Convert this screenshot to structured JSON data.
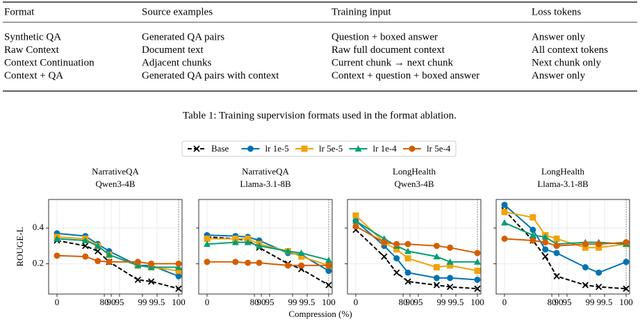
{
  "table": {
    "headers": [
      "Format",
      "Source examples",
      "Training input",
      "Loss tokens"
    ],
    "rows": [
      [
        "Synthetic QA",
        "Generated QA pairs",
        "Question + boxed answer",
        "Answer only"
      ],
      [
        "Raw Context",
        "Document text",
        "Raw full document context",
        "All context tokens"
      ],
      [
        "Context Continuation",
        "Adjacent chunks",
        "Current chunk → next chunk",
        "Next chunk only"
      ],
      [
        "Context + QA",
        "Generated QA pairs with context",
        "Context + question + boxed answer",
        "Answer only"
      ]
    ]
  },
  "caption": "Table 1: Training supervision formats used in the format ablation.",
  "figure": {
    "xlabel": "Compression (%)",
    "ylabel": "ROUGE-L",
    "legend": "top center"
  },
  "chart_data": [
    {
      "type": "line",
      "title": "NarrativeQA",
      "subtitle": "Qwen3-4B",
      "x": [
        0,
        48,
        69,
        87,
        98.2,
        99.3,
        100
      ],
      "xlim": [
        0,
        100
      ],
      "xticks": [
        0,
        80,
        90,
        95,
        99,
        99.5,
        100
      ],
      "ylim": [
        0.03,
        0.56
      ],
      "yticks": [
        0.2,
        0.4
      ],
      "grid": true,
      "vline": 100,
      "series": [
        {
          "name": "Base",
          "color": "#000000",
          "marker": "x",
          "dash": true,
          "values": [
            0.33,
            0.3,
            0.27,
            0.21,
            0.11,
            0.1,
            0.06
          ]
        },
        {
          "name": "lr 1e-5",
          "color": "#0173b2",
          "marker": "circle",
          "values": [
            0.37,
            0.355,
            0.31,
            0.27,
            0.19,
            0.19,
            0.13
          ]
        },
        {
          "name": "lr 5e-5",
          "color": "#f0a30a",
          "marker": "square",
          "values": [
            0.35,
            0.34,
            0.3,
            0.25,
            0.19,
            0.18,
            0.16
          ]
        },
        {
          "name": "lr 1e-4",
          "color": "#029e73",
          "marker": "triangle",
          "values": [
            0.34,
            0.33,
            0.3,
            0.25,
            0.19,
            0.18,
            0.18
          ]
        },
        {
          "name": "lr 5e-4",
          "color": "#d55e00",
          "marker": "circle",
          "values": [
            0.245,
            0.24,
            0.215,
            0.21,
            0.21,
            0.2,
            0.2
          ]
        }
      ]
    },
    {
      "type": "line",
      "title": "NarrativeQA",
      "subtitle": "Llama-3.1-8B",
      "x": [
        0,
        48,
        69,
        87,
        98.2,
        99.3,
        100
      ],
      "xlim": [
        0,
        100
      ],
      "xticks": [
        0,
        80,
        90,
        95,
        99,
        99.5,
        100
      ],
      "ylim": [
        0.03,
        0.56
      ],
      "yticks": [
        0.2,
        0.4
      ],
      "grid": true,
      "vline": 100,
      "series": [
        {
          "name": "Base",
          "color": "#000000",
          "marker": "x",
          "dash": true,
          "values": [
            0.35,
            0.34,
            0.33,
            0.29,
            0.2,
            0.17,
            0.08
          ]
        },
        {
          "name": "lr 1e-5",
          "color": "#0173b2",
          "marker": "circle",
          "values": [
            0.36,
            0.355,
            0.35,
            0.33,
            0.26,
            0.25,
            0.16
          ]
        },
        {
          "name": "lr 5e-5",
          "color": "#f0a30a",
          "marker": "square",
          "values": [
            0.34,
            0.34,
            0.34,
            0.31,
            0.27,
            0.24,
            0.19
          ]
        },
        {
          "name": "lr 1e-4",
          "color": "#029e73",
          "marker": "triangle",
          "values": [
            0.31,
            0.32,
            0.32,
            0.3,
            0.27,
            0.26,
            0.22
          ]
        },
        {
          "name": "lr 5e-4",
          "color": "#d55e00",
          "marker": "circle",
          "values": [
            0.21,
            0.21,
            0.205,
            0.205,
            0.19,
            0.19,
            0.19
          ]
        }
      ]
    },
    {
      "type": "line",
      "title": "LongHealth",
      "subtitle": "Qwen3-4B",
      "x": [
        0,
        48,
        69,
        87,
        98.2,
        99.3,
        100
      ],
      "xlim": [
        0,
        100
      ],
      "xticks": [
        0,
        80,
        90,
        95,
        99,
        99.5,
        100
      ],
      "ylim": [
        0.03,
        0.56
      ],
      "yticks": [
        0.2,
        0.4
      ],
      "grid": true,
      "vline": 100,
      "series": [
        {
          "name": "Base",
          "color": "#000000",
          "marker": "x",
          "dash": true,
          "values": [
            0.39,
            0.24,
            0.15,
            0.1,
            0.08,
            0.07,
            0.06
          ]
        },
        {
          "name": "lr 1e-5",
          "color": "#0173b2",
          "marker": "circle",
          "values": [
            0.44,
            0.3,
            0.23,
            0.15,
            0.12,
            0.12,
            0.11
          ]
        },
        {
          "name": "lr 5e-5",
          "color": "#f0a30a",
          "marker": "square",
          "values": [
            0.47,
            0.32,
            0.28,
            0.23,
            0.18,
            0.19,
            0.16
          ]
        },
        {
          "name": "lr 1e-4",
          "color": "#029e73",
          "marker": "triangle",
          "values": [
            0.44,
            0.34,
            0.3,
            0.27,
            0.24,
            0.21,
            0.21
          ]
        },
        {
          "name": "lr 5e-4",
          "color": "#d55e00",
          "marker": "circle",
          "values": [
            0.41,
            0.32,
            0.31,
            0.31,
            0.3,
            0.29,
            0.26
          ]
        }
      ]
    },
    {
      "type": "line",
      "title": "LongHealth",
      "subtitle": "Llama-3.1-8B",
      "x": [
        0,
        48,
        69,
        87,
        98.2,
        99.3,
        100
      ],
      "xlim": [
        0,
        100
      ],
      "xticks": [
        0,
        80,
        90,
        95,
        99,
        99.5,
        100
      ],
      "ylim": [
        0.03,
        0.56
      ],
      "yticks": [
        0.2,
        0.4
      ],
      "grid": true,
      "vline": 100,
      "series": [
        {
          "name": "Base",
          "color": "#000000",
          "marker": "x",
          "dash": true,
          "values": [
            0.5,
            0.33,
            0.24,
            0.13,
            0.08,
            0.07,
            0.06
          ]
        },
        {
          "name": "lr 1e-5",
          "color": "#0173b2",
          "marker": "circle",
          "values": [
            0.53,
            0.39,
            0.28,
            0.26,
            0.18,
            0.15,
            0.21
          ]
        },
        {
          "name": "lr 5e-5",
          "color": "#f0a30a",
          "marker": "square",
          "values": [
            0.49,
            0.46,
            0.36,
            0.34,
            0.29,
            0.29,
            0.31
          ]
        },
        {
          "name": "lr 1e-4",
          "color": "#029e73",
          "marker": "triangle",
          "values": [
            0.43,
            0.36,
            0.35,
            0.31,
            0.32,
            0.32,
            0.31
          ]
        },
        {
          "name": "lr 5e-4",
          "color": "#d55e00",
          "marker": "circle",
          "values": [
            0.34,
            0.33,
            0.32,
            0.3,
            0.31,
            0.31,
            0.32
          ]
        }
      ]
    }
  ]
}
